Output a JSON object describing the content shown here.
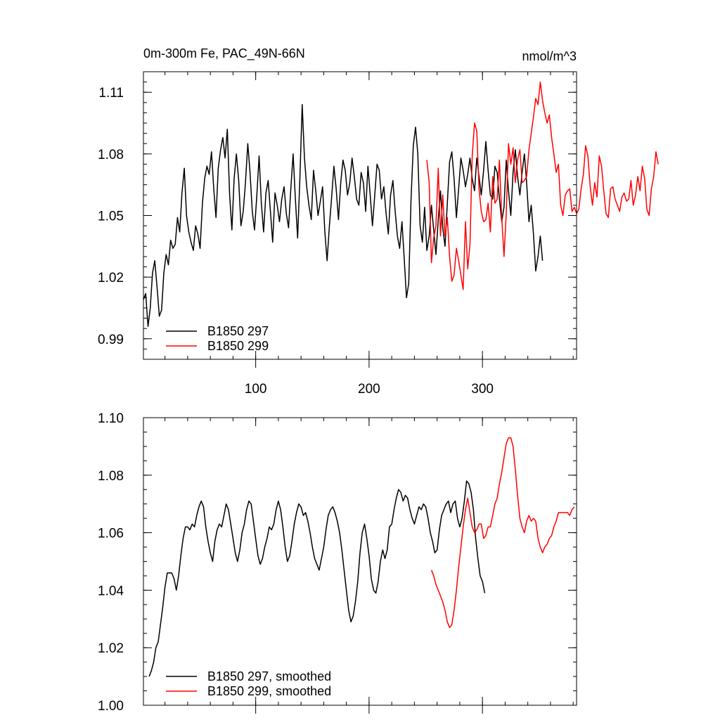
{
  "chart_data": [
    {
      "type": "line",
      "title": "0m-300m Fe, PAC_49N-66N",
      "units": "nmol/m^3",
      "xlim": [
        1,
        383
      ],
      "ylim": [
        0.98,
        1.12
      ],
      "xticks": [
        100,
        200,
        300
      ],
      "xtick_labels": [
        "100",
        "200",
        "300"
      ],
      "yticks": [
        0.99,
        1.02,
        1.05,
        1.08,
        1.11
      ],
      "ytick_labels": [
        "0.99",
        "1.02",
        "1.05",
        "1.08",
        "1.11"
      ],
      "legend_position": "bottom-left",
      "series": [
        {
          "name": "B1850 297",
          "color": "#000000",
          "x_start": 1,
          "x_step": 2,
          "values": [
            1.009,
            1.012,
            0.996,
            1.005,
            1.022,
            1.028,
            1.015,
            1.001,
            1.004,
            1.022,
            1.031,
            1.026,
            1.038,
            1.034,
            1.036,
            1.049,
            1.042,
            1.061,
            1.073,
            1.05,
            1.042,
            1.037,
            1.033,
            1.045,
            1.041,
            1.034,
            1.056,
            1.068,
            1.074,
            1.07,
            1.081,
            1.063,
            1.049,
            1.073,
            1.082,
            1.088,
            1.078,
            1.092,
            1.06,
            1.043,
            1.068,
            1.08,
            1.067,
            1.045,
            1.052,
            1.066,
            1.085,
            1.071,
            1.052,
            1.043,
            1.06,
            1.079,
            1.056,
            1.042,
            1.061,
            1.067,
            1.052,
            1.037,
            1.061,
            1.055,
            1.047,
            1.058,
            1.064,
            1.051,
            1.044,
            1.063,
            1.08,
            1.058,
            1.039,
            1.068,
            1.104,
            1.078,
            1.064,
            1.055,
            1.048,
            1.072,
            1.062,
            1.05,
            1.057,
            1.064,
            1.042,
            1.028,
            1.045,
            1.059,
            1.074,
            1.063,
            1.048,
            1.066,
            1.077,
            1.072,
            1.06,
            1.066,
            1.078,
            1.069,
            1.058,
            1.055,
            1.071,
            1.066,
            1.052,
            1.074,
            1.06,
            1.045,
            1.06,
            1.075,
            1.072,
            1.058,
            1.064,
            1.051,
            1.041,
            1.06,
            1.067,
            1.052,
            1.04,
            1.034,
            1.047,
            1.029,
            1.01,
            1.017,
            1.058,
            1.084,
            1.093,
            1.08,
            1.045,
            1.037,
            1.054,
            1.033,
            1.04,
            1.055,
            1.043,
            1.031,
            1.048,
            1.062,
            1.044,
            1.035,
            1.056,
            1.076,
            1.081,
            1.068,
            1.049,
            1.063,
            1.078,
            1.072,
            1.064,
            1.07,
            1.078,
            1.068,
            1.062,
            1.078,
            1.069,
            1.06,
            1.072,
            1.086,
            1.072,
            1.06,
            1.058,
            1.074,
            1.071,
            1.058,
            1.047,
            1.054,
            1.077,
            1.062,
            1.05,
            1.071,
            1.082,
            1.069,
            1.06,
            1.071,
            1.08,
            1.066,
            1.047,
            1.055,
            1.041,
            1.023,
            1.03,
            1.04,
            1.028
          ]
        },
        {
          "name": "B1850 299",
          "color": "#ff0000",
          "x_start": 251,
          "x_step": 2,
          "values": [
            1.077,
            1.066,
            1.027,
            1.039,
            1.045,
            1.073,
            1.04,
            1.06,
            1.04,
            1.049,
            1.03,
            1.018,
            1.021,
            1.034,
            1.028,
            1.021,
            1.014,
            1.047,
            1.024,
            1.036,
            1.079,
            1.095,
            1.091,
            1.063,
            1.052,
            1.047,
            1.048,
            1.056,
            1.042,
            1.069,
            1.056,
            1.058,
            1.077,
            1.049,
            1.03,
            1.051,
            1.085,
            1.075,
            1.083,
            1.066,
            1.077,
            1.082,
            1.066,
            1.067,
            1.069,
            1.082,
            1.09,
            1.098,
            1.107,
            1.104,
            1.115,
            1.106,
            1.1,
            1.095,
            1.099,
            1.088,
            1.08,
            1.071,
            1.075,
            1.055,
            1.05,
            1.06,
            1.062,
            1.063,
            1.052,
            1.054,
            1.051,
            1.053,
            1.063,
            1.07,
            1.084,
            1.079,
            1.064,
            1.055,
            1.066,
            1.059,
            1.079,
            1.074,
            1.062,
            1.051,
            1.049,
            1.063,
            1.064,
            1.058,
            1.055,
            1.052,
            1.059,
            1.061,
            1.057,
            1.058,
            1.067,
            1.055,
            1.06,
            1.069,
            1.062,
            1.074,
            1.068,
            1.053,
            1.05,
            1.063,
            1.069,
            1.081,
            1.075
          ]
        }
      ]
    },
    {
      "type": "line",
      "title": "",
      "xlim": [
        1,
        383
      ],
      "ylim": [
        1.0,
        1.1
      ],
      "yticks": [
        1.0,
        1.02,
        1.04,
        1.06,
        1.08,
        1.1
      ],
      "ytick_labels": [
        "1.00",
        "1.02",
        "1.04",
        "1.06",
        "1.08",
        "1.10"
      ],
      "legend_position": "bottom-left",
      "series": [
        {
          "name": "B1850 297, smoothed",
          "color": "#000000",
          "x": [
            6,
            8,
            10,
            12,
            14,
            16,
            18,
            20,
            22,
            24,
            26,
            28,
            30,
            32,
            34,
            36,
            38,
            40,
            42,
            44,
            46,
            48,
            50,
            52,
            54,
            56,
            58,
            60,
            62,
            64,
            66,
            68,
            70,
            72,
            74,
            76,
            78,
            80,
            82,
            84,
            86,
            88,
            90,
            92,
            94,
            96,
            98,
            100,
            102,
            104,
            106,
            108,
            110,
            112,
            114,
            116,
            118,
            120,
            122,
            124,
            126,
            128,
            130,
            132,
            134,
            136,
            138,
            140,
            142,
            144,
            146,
            148,
            150,
            152,
            154,
            156,
            158,
            160,
            162,
            164,
            166,
            168,
            170,
            172,
            174,
            176,
            178,
            180,
            182,
            184,
            186,
            188,
            190,
            192,
            194,
            196,
            198,
            200,
            202,
            204,
            206,
            208,
            210,
            212,
            214,
            216,
            218,
            220,
            222,
            224,
            226,
            228,
            230,
            232,
            234,
            236,
            238,
            240,
            242,
            244,
            246,
            248,
            250,
            252,
            254,
            256,
            258,
            260,
            262,
            264,
            266,
            268,
            270,
            272,
            274,
            276,
            278,
            280,
            282,
            284,
            286,
            288,
            290,
            292,
            294,
            296,
            298,
            300,
            302
          ],
          "values": [
            1.01,
            1.012,
            1.015,
            1.02,
            1.022,
            1.028,
            1.034,
            1.041,
            1.046,
            1.046,
            1.046,
            1.044,
            1.04,
            1.045,
            1.052,
            1.058,
            1.062,
            1.062,
            1.061,
            1.063,
            1.062,
            1.066,
            1.069,
            1.071,
            1.069,
            1.062,
            1.057,
            1.053,
            1.05,
            1.057,
            1.061,
            1.063,
            1.062,
            1.066,
            1.07,
            1.068,
            1.063,
            1.058,
            1.053,
            1.05,
            1.054,
            1.06,
            1.063,
            1.068,
            1.071,
            1.07,
            1.064,
            1.058,
            1.052,
            1.049,
            1.051,
            1.055,
            1.058,
            1.062,
            1.061,
            1.063,
            1.068,
            1.071,
            1.068,
            1.062,
            1.055,
            1.05,
            1.052,
            1.057,
            1.063,
            1.067,
            1.07,
            1.069,
            1.066,
            1.067,
            1.064,
            1.06,
            1.055,
            1.051,
            1.049,
            1.047,
            1.051,
            1.055,
            1.061,
            1.066,
            1.068,
            1.069,
            1.067,
            1.064,
            1.06,
            1.054,
            1.047,
            1.04,
            1.033,
            1.029,
            1.031,
            1.036,
            1.043,
            1.053,
            1.06,
            1.063,
            1.058,
            1.052,
            1.044,
            1.04,
            1.039,
            1.043,
            1.05,
            1.054,
            1.051,
            1.054,
            1.062,
            1.063,
            1.068,
            1.072,
            1.075,
            1.074,
            1.071,
            1.073,
            1.072,
            1.068,
            1.065,
            1.063,
            1.066,
            1.069,
            1.068,
            1.07,
            1.069,
            1.065,
            1.06,
            1.057,
            1.053,
            1.054,
            1.061,
            1.066,
            1.068,
            1.07,
            1.071,
            1.067,
            1.07,
            1.071,
            1.065,
            1.062,
            1.065,
            1.071,
            1.078,
            1.077,
            1.074,
            1.068,
            1.058,
            1.051,
            1.045,
            1.043,
            1.039
          ]
        },
        {
          "name": "B1850 299, smoothed",
          "color": "#ff0000",
          "x": [
            255,
            257,
            259,
            261,
            263,
            265,
            267,
            269,
            271,
            273,
            275,
            277,
            279,
            281,
            283,
            285,
            287,
            289,
            291,
            293,
            295,
            297,
            299,
            301,
            303,
            305,
            307,
            309,
            311,
            313,
            315,
            317,
            319,
            321,
            323,
            325,
            327,
            329,
            331,
            333,
            335,
            337,
            339,
            341,
            343,
            345,
            347,
            349,
            351,
            353,
            355,
            357,
            359,
            361,
            363,
            365,
            367,
            369,
            371,
            373,
            375,
            377,
            379,
            381
          ],
          "values": [
            1.047,
            1.045,
            1.042,
            1.04,
            1.038,
            1.036,
            1.033,
            1.029,
            1.027,
            1.028,
            1.033,
            1.04,
            1.048,
            1.055,
            1.062,
            1.068,
            1.072,
            1.067,
            1.062,
            1.06,
            1.061,
            1.063,
            1.063,
            1.058,
            1.059,
            1.062,
            1.062,
            1.066,
            1.07,
            1.072,
            1.077,
            1.081,
            1.086,
            1.091,
            1.093,
            1.093,
            1.09,
            1.082,
            1.073,
            1.065,
            1.062,
            1.06,
            1.064,
            1.066,
            1.064,
            1.065,
            1.064,
            1.058,
            1.055,
            1.053,
            1.055,
            1.056,
            1.058,
            1.059,
            1.062,
            1.064,
            1.067,
            1.067,
            1.067,
            1.067,
            1.067,
            1.066,
            1.068,
            1.069
          ]
        }
      ]
    }
  ]
}
